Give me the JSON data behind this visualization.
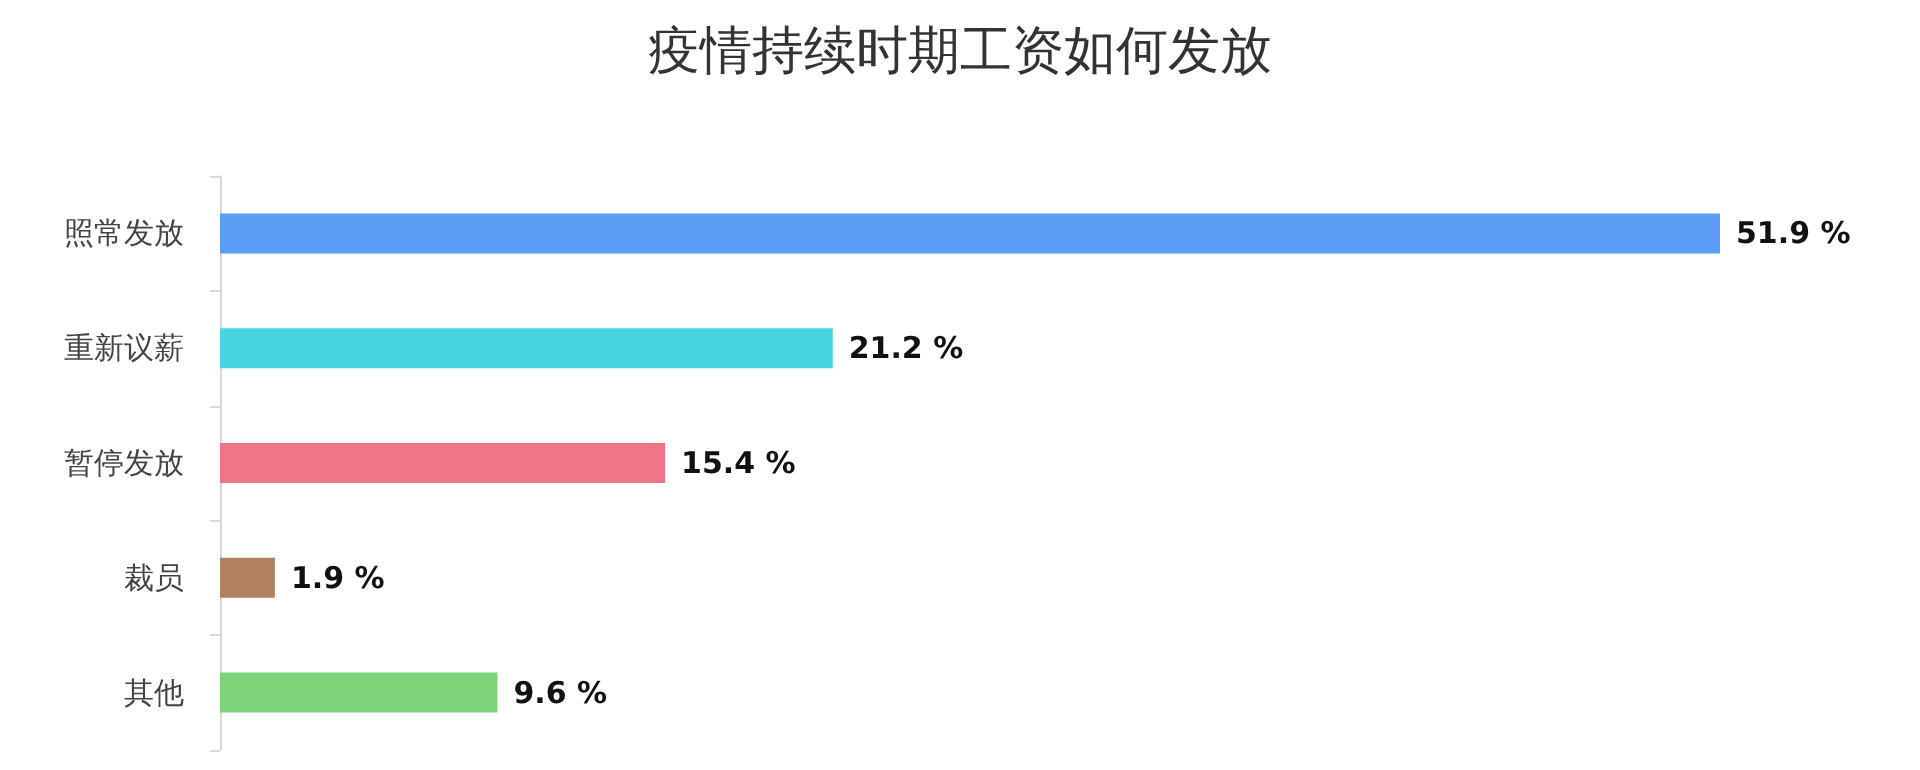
{
  "chart_data": {
    "type": "bar",
    "orientation": "horizontal",
    "title": "疫情持续时期工资如何发放",
    "categories": [
      "照常发放",
      "重新议薪",
      "暂停发放",
      "裁员",
      "其他"
    ],
    "values": [
      51.9,
      21.2,
      15.4,
      1.9,
      9.6
    ],
    "colors": [
      "#5b9cf5",
      "#45d4e0",
      "#f07585",
      "#b08060",
      "#7dd37a"
    ],
    "value_labels": [
      "51.9 %",
      "21.2 %",
      "15.4 %",
      "1.9 %",
      "9.6 %"
    ],
    "grid": false
  }
}
